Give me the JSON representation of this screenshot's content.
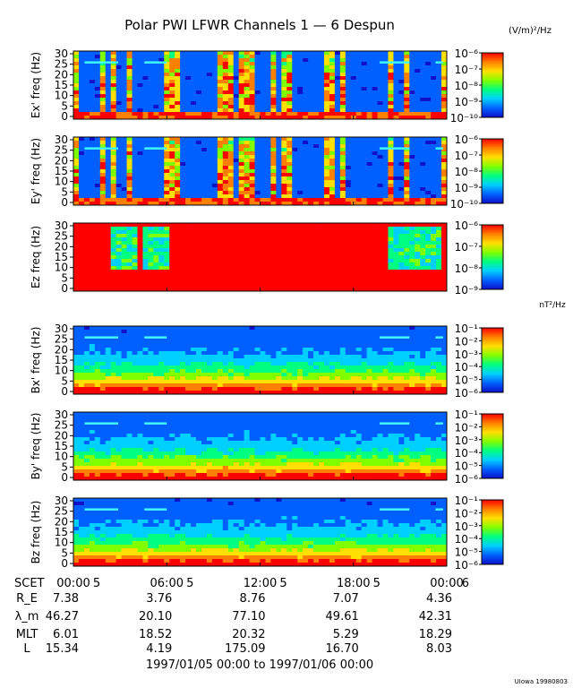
{
  "title": "Polar PWI LFWR Channels 1 — 6 Despun",
  "electric_units": "(V/m)²/Hz",
  "magnetic_units": "nT²/Hz",
  "date_range": "1997/01/05 00:00 to 1997/01/06 00:00",
  "credit": "UIowa 19980803",
  "colorbar_colors": [
    "#1010c8",
    "#0060ff",
    "#00d0ff",
    "#00ff80",
    "#80ff00",
    "#ffe000",
    "#ff8000",
    "#ff0000"
  ],
  "chart_data": [
    {
      "type": "heatmap",
      "ylabel": "Ex' freq (Hz)",
      "yticks": [
        "0",
        "5",
        "10",
        "15",
        "20",
        "25",
        "30"
      ],
      "ylim": [
        0,
        30
      ],
      "xlim_hours": [
        0,
        24
      ],
      "colorbar": {
        "ticks": [
          "10⁻¹⁰",
          "10⁻⁹",
          "10⁻⁸",
          "10⁻⁷",
          "10⁻⁶"
        ]
      }
    },
    {
      "type": "heatmap",
      "ylabel": "Ey' freq (Hz)",
      "yticks": [
        "0",
        "5",
        "10",
        "15",
        "20",
        "25",
        "30"
      ],
      "ylim": [
        0,
        30
      ],
      "xlim_hours": [
        0,
        24
      ],
      "colorbar": {
        "ticks": [
          "10⁻¹⁰",
          "10⁻⁹",
          "10⁻⁸",
          "10⁻⁷",
          "10⁻⁶"
        ]
      }
    },
    {
      "type": "heatmap",
      "ylabel": "Ez freq (Hz)",
      "yticks": [
        "0",
        "5",
        "10",
        "15",
        "20",
        "25",
        "30"
      ],
      "ylim": [
        0,
        30
      ],
      "xlim_hours": [
        0,
        24
      ],
      "colorbar": {
        "ticks": [
          "10⁻⁹",
          "10⁻⁸",
          "10⁻⁷",
          "10⁻⁶"
        ]
      }
    },
    {
      "type": "heatmap",
      "ylabel": "Bx' freq (Hz)",
      "yticks": [
        "0",
        "5",
        "10",
        "15",
        "20",
        "25",
        "30"
      ],
      "ylim": [
        0,
        30
      ],
      "xlim_hours": [
        0,
        24
      ],
      "colorbar": {
        "ticks": [
          "10⁻⁶",
          "10⁻⁵",
          "10⁻⁴",
          "10⁻³",
          "10⁻²",
          "10⁻¹"
        ]
      }
    },
    {
      "type": "heatmap",
      "ylabel": "By' freq (Hz)",
      "yticks": [
        "0",
        "5",
        "10",
        "15",
        "20",
        "25",
        "30"
      ],
      "ylim": [
        0,
        30
      ],
      "xlim_hours": [
        0,
        24
      ],
      "colorbar": {
        "ticks": [
          "10⁻⁶",
          "10⁻⁵",
          "10⁻⁴",
          "10⁻³",
          "10⁻²",
          "10⁻¹"
        ]
      }
    },
    {
      "type": "heatmap",
      "ylabel": "Bz freq (Hz)",
      "yticks": [
        "0",
        "5",
        "10",
        "15",
        "20",
        "25",
        "30"
      ],
      "ylim": [
        0,
        30
      ],
      "xlim_hours": [
        0,
        24
      ],
      "colorbar": {
        "ticks": [
          "10⁻⁶",
          "10⁻⁵",
          "10⁻⁴",
          "10⁻³",
          "10⁻²",
          "10⁻¹"
        ]
      }
    }
  ],
  "x_axis": {
    "label": "SCET",
    "major": [
      {
        "hour": 0,
        "text": "00:00"
      },
      {
        "hour": 6,
        "text": "06:00"
      },
      {
        "hour": 12,
        "text": "12:00"
      },
      {
        "hour": 18,
        "text": "18:00"
      },
      {
        "hour": 24,
        "text": "00:00"
      }
    ],
    "minor": [
      {
        "hour": 1.5,
        "text": "5"
      },
      {
        "hour": 7.5,
        "text": "5"
      },
      {
        "hour": 13.5,
        "text": "5"
      },
      {
        "hour": 19.5,
        "text": "5"
      },
      {
        "hour": 25.2,
        "text": "6"
      }
    ]
  },
  "ephemeris": {
    "rows": [
      {
        "label": "R_E",
        "values": [
          "7.38",
          "3.76",
          "8.76",
          "7.07",
          "4.36"
        ]
      },
      {
        "label": "λ_m",
        "values": [
          "46.27",
          "20.10",
          "77.10",
          "49.61",
          "42.31"
        ]
      },
      {
        "label": "MLT",
        "values": [
          "6.01",
          "18.52",
          "20.32",
          "5.29",
          "18.29"
        ]
      },
      {
        "label": "L",
        "values": [
          "15.34",
          "4.19",
          "175.09",
          "16.70",
          "8.03"
        ]
      }
    ]
  }
}
